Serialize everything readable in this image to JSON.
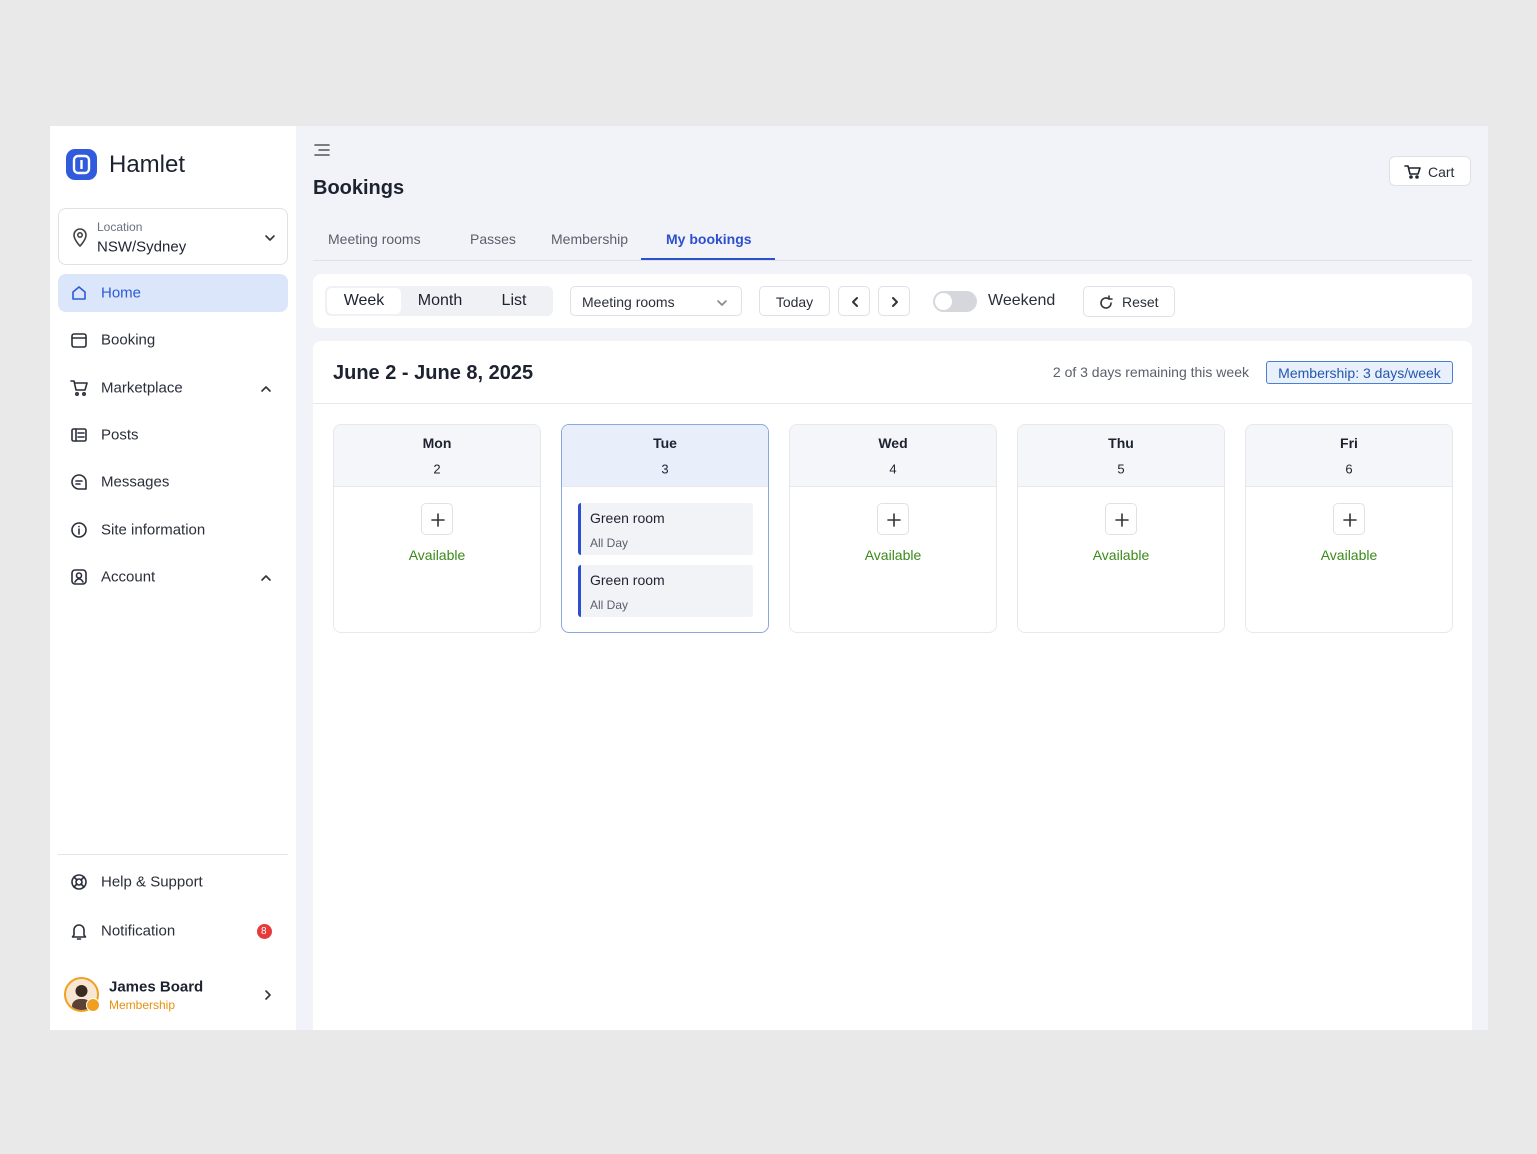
{
  "sidebar": {
    "brand": "Hamlet",
    "location": {
      "label": "Location",
      "value": "NSW/Sydney"
    },
    "nav": [
      {
        "label": "Home",
        "active": true
      },
      {
        "label": "Booking"
      },
      {
        "label": "Marketplace",
        "expandable": true
      },
      {
        "label": "Posts"
      },
      {
        "label": "Messages"
      },
      {
        "label": "Site information"
      },
      {
        "label": "Account",
        "expandable": true
      }
    ],
    "footer_nav": [
      {
        "label": "Help & Support"
      },
      {
        "label": "Notification",
        "badge": 8
      }
    ],
    "user": {
      "name": "James Board",
      "role": "Membership"
    }
  },
  "header": {
    "title": "Bookings",
    "cart": "Cart"
  },
  "tabs": {
    "items": [
      "Meeting rooms",
      "Passes",
      "Membership",
      "My bookings"
    ],
    "active": 3
  },
  "toolbar": {
    "views": [
      "Week",
      "Month",
      "List"
    ],
    "active_view": 0,
    "filter": "Meeting rooms",
    "today": "Today",
    "weekend": "Weekend",
    "reset": "Reset"
  },
  "calendar": {
    "range": "June 2 - June 8, 2025",
    "remaining": "2 of 3 days remaining this week",
    "membership": "Membership: 3 days/week",
    "days": [
      {
        "name": "Mon",
        "date": 2,
        "status": "Available"
      },
      {
        "name": "Tue",
        "date": 3,
        "selected": true,
        "bookings": [
          {
            "room": "Green room",
            "time": "All Day"
          },
          {
            "room": "Green room",
            "time": "All Day"
          }
        ]
      },
      {
        "name": "Wed",
        "date": 4,
        "status": "Available"
      },
      {
        "name": "Thu",
        "date": 5,
        "status": "Available"
      },
      {
        "name": "Fri",
        "date": 6,
        "status": "Available"
      }
    ]
  }
}
